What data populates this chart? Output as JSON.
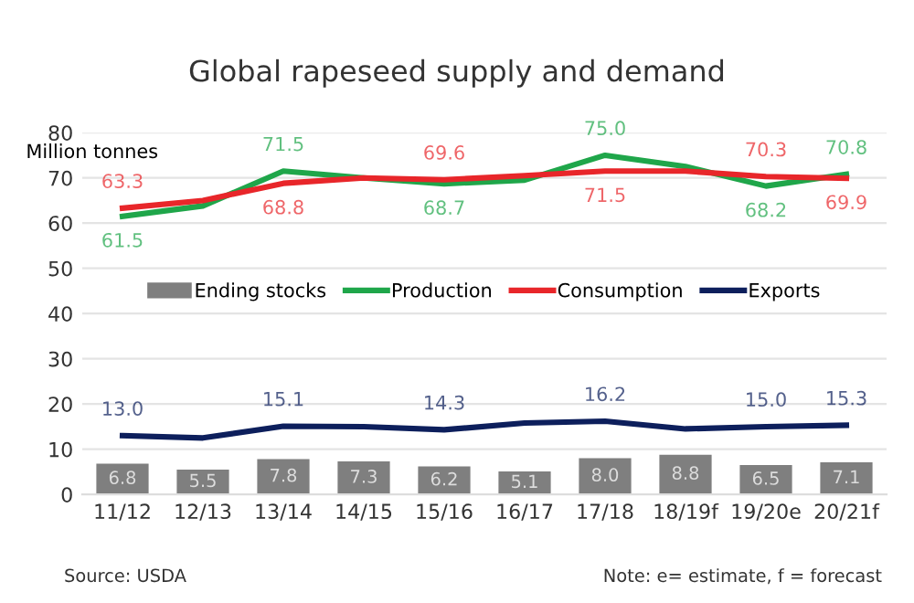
{
  "chart_data": {
    "type": "line",
    "title": "Global rapeseed supply and demand",
    "ylabel": "Million tonnes",
    "categories": [
      "11/12",
      "12/13",
      "13/14",
      "14/15",
      "15/16",
      "16/17",
      "17/18",
      "18/19f",
      "19/20e",
      "20/21f"
    ],
    "series": [
      {
        "name": "Ending stocks",
        "type": "bar",
        "color": "#7f7f7f",
        "values": [
          6.8,
          5.5,
          7.8,
          7.3,
          6.2,
          5.1,
          8.0,
          8.8,
          6.5,
          7.1
        ],
        "value_labels": [
          "6.8",
          "5.5",
          "7.8",
          "7.3",
          "6.2",
          "5.1",
          "8.0",
          "8.8",
          "6.5",
          "7.1"
        ]
      },
      {
        "name": "Production",
        "color": "#1fa64a",
        "values": [
          61.5,
          63.8,
          71.5,
          70.0,
          68.7,
          69.5,
          75.0,
          72.5,
          68.2,
          70.8
        ],
        "value_labels": [
          "61.5",
          null,
          "71.5",
          null,
          "68.7",
          null,
          "75.0",
          null,
          "68.2",
          "70.8"
        ]
      },
      {
        "name": "Consumption",
        "color": "#e8262a",
        "values": [
          63.3,
          65.0,
          68.8,
          70.0,
          69.6,
          70.5,
          71.5,
          71.5,
          70.3,
          69.9
        ],
        "value_labels": [
          "63.3",
          null,
          "68.8",
          null,
          "69.6",
          null,
          "71.5",
          null,
          "70.3",
          "69.9"
        ]
      },
      {
        "name": "Exports",
        "color": "#0d1f5c",
        "values": [
          13.0,
          12.5,
          15.1,
          15.0,
          14.3,
          15.8,
          16.2,
          14.5,
          15.0,
          15.3
        ],
        "value_labels": [
          "13.0",
          null,
          "15.1",
          null,
          "14.3",
          null,
          "16.2",
          null,
          "15.0",
          "15.3"
        ]
      }
    ],
    "ylim": [
      0,
      80
    ],
    "yticks": [
      0,
      10,
      20,
      30,
      40,
      50,
      60,
      70,
      80
    ],
    "grid": "y",
    "legend": "center",
    "marker": "none",
    "line_style": "solid",
    "annotations": [
      "Source: USDA",
      "Note: e= estimate, f = forecast"
    ]
  }
}
